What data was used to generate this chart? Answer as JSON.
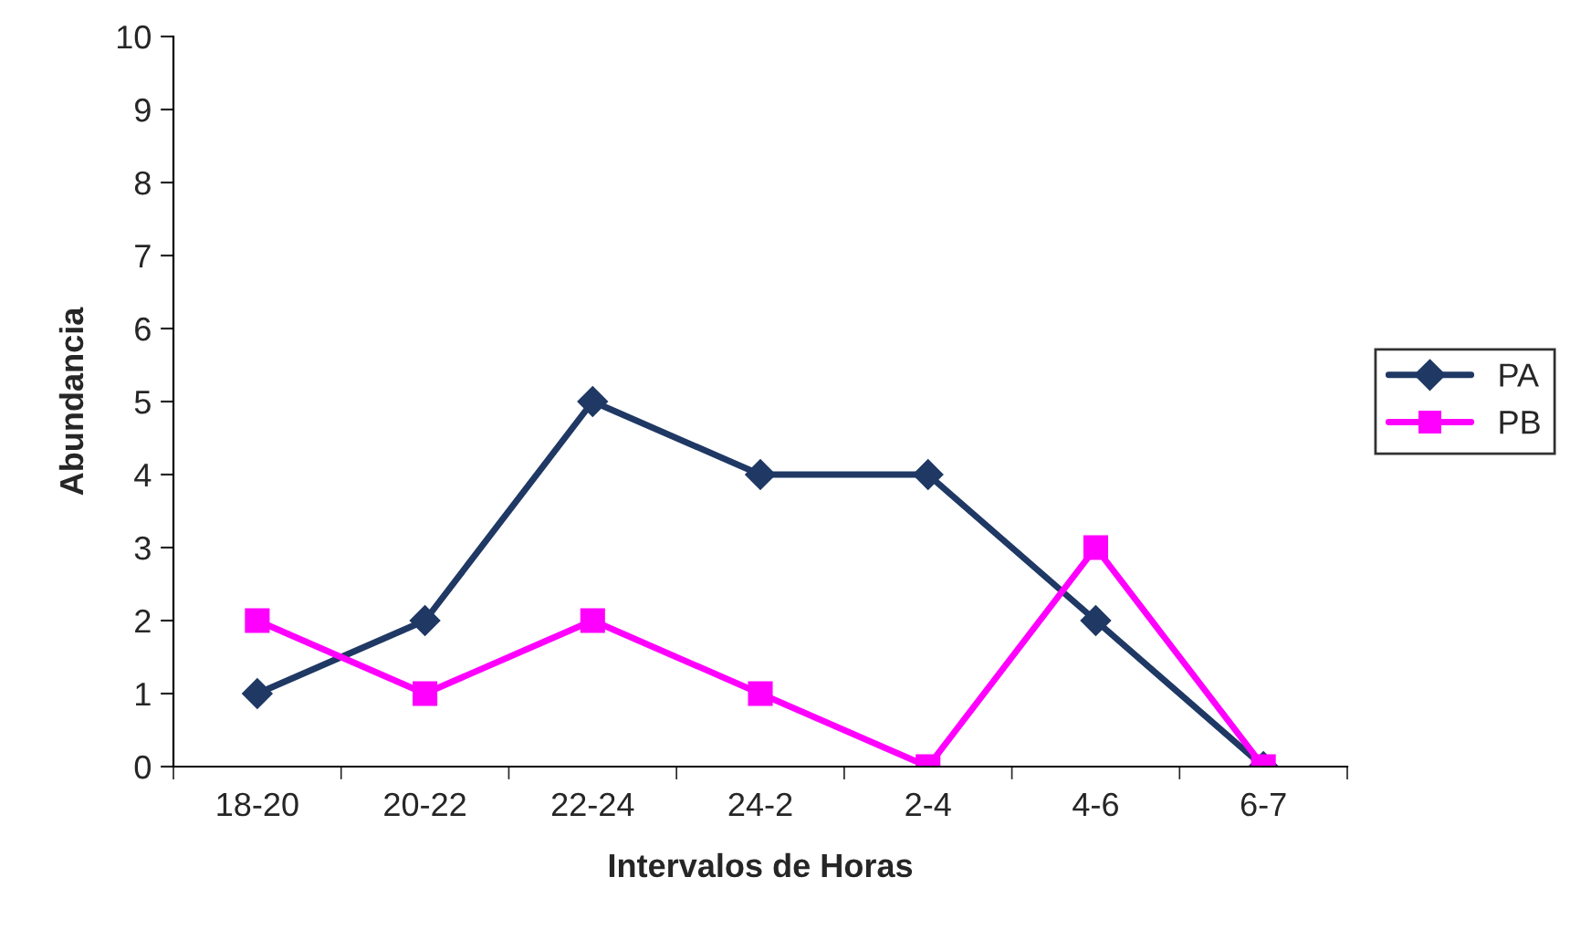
{
  "chart_data": {
    "type": "line",
    "xlabel": "Intervalos de Horas",
    "ylabel": "Abundancia",
    "categories": [
      "18-20",
      "20-22",
      "22-24",
      "24-2",
      "2-4",
      "4-6",
      "6-7"
    ],
    "series": [
      {
        "name": "PA",
        "color": "#1f3864",
        "marker": "diamond",
        "values": [
          1,
          2,
          5,
          4,
          4,
          2,
          0
        ]
      },
      {
        "name": "PB",
        "color": "#ff00ff",
        "marker": "square",
        "values": [
          2,
          1,
          2,
          1,
          0,
          3,
          0
        ]
      }
    ],
    "ylim": [
      0,
      10
    ],
    "yticks": [
      0,
      1,
      2,
      3,
      4,
      5,
      6,
      7,
      8,
      9,
      10
    ],
    "grid": false,
    "legend": "right",
    "line_style": "solid"
  }
}
